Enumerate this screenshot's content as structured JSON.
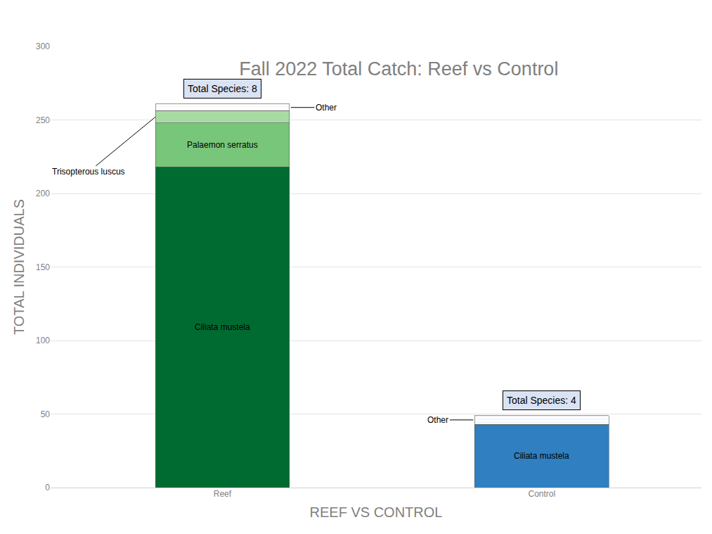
{
  "chart_data": {
    "type": "bar",
    "title": "Fall 2022 Total Catch: Reef vs Control",
    "x_label": "REEF VS CONTROL",
    "y_label": "TOTAL INDIVIDUALS",
    "categories": [
      "Reef",
      "Control"
    ],
    "stacked": true,
    "series": [
      {
        "name": "Ciliata mustela",
        "colors": [
          "#006b31",
          "#2f7fc1"
        ],
        "values": [
          218,
          43
        ]
      },
      {
        "name": "Palaemon serratus",
        "color": "#78c679",
        "values": [
          30,
          null
        ]
      },
      {
        "name": "Trisopterous luscus",
        "color": "#a8dba4",
        "values": [
          8,
          null
        ]
      },
      {
        "name": "Other",
        "colors": [
          "#eef3ee",
          "#dfe9f5"
        ],
        "values": [
          5,
          6
        ]
      }
    ],
    "annotations": [
      {
        "text": "Total Species: 8",
        "category": "Reef"
      },
      {
        "text": "Total Species: 4",
        "category": "Control"
      }
    ],
    "ylim": [
      0,
      300
    ],
    "yticks": [
      0,
      50,
      100,
      150,
      200,
      250,
      300
    ],
    "grid": true
  }
}
